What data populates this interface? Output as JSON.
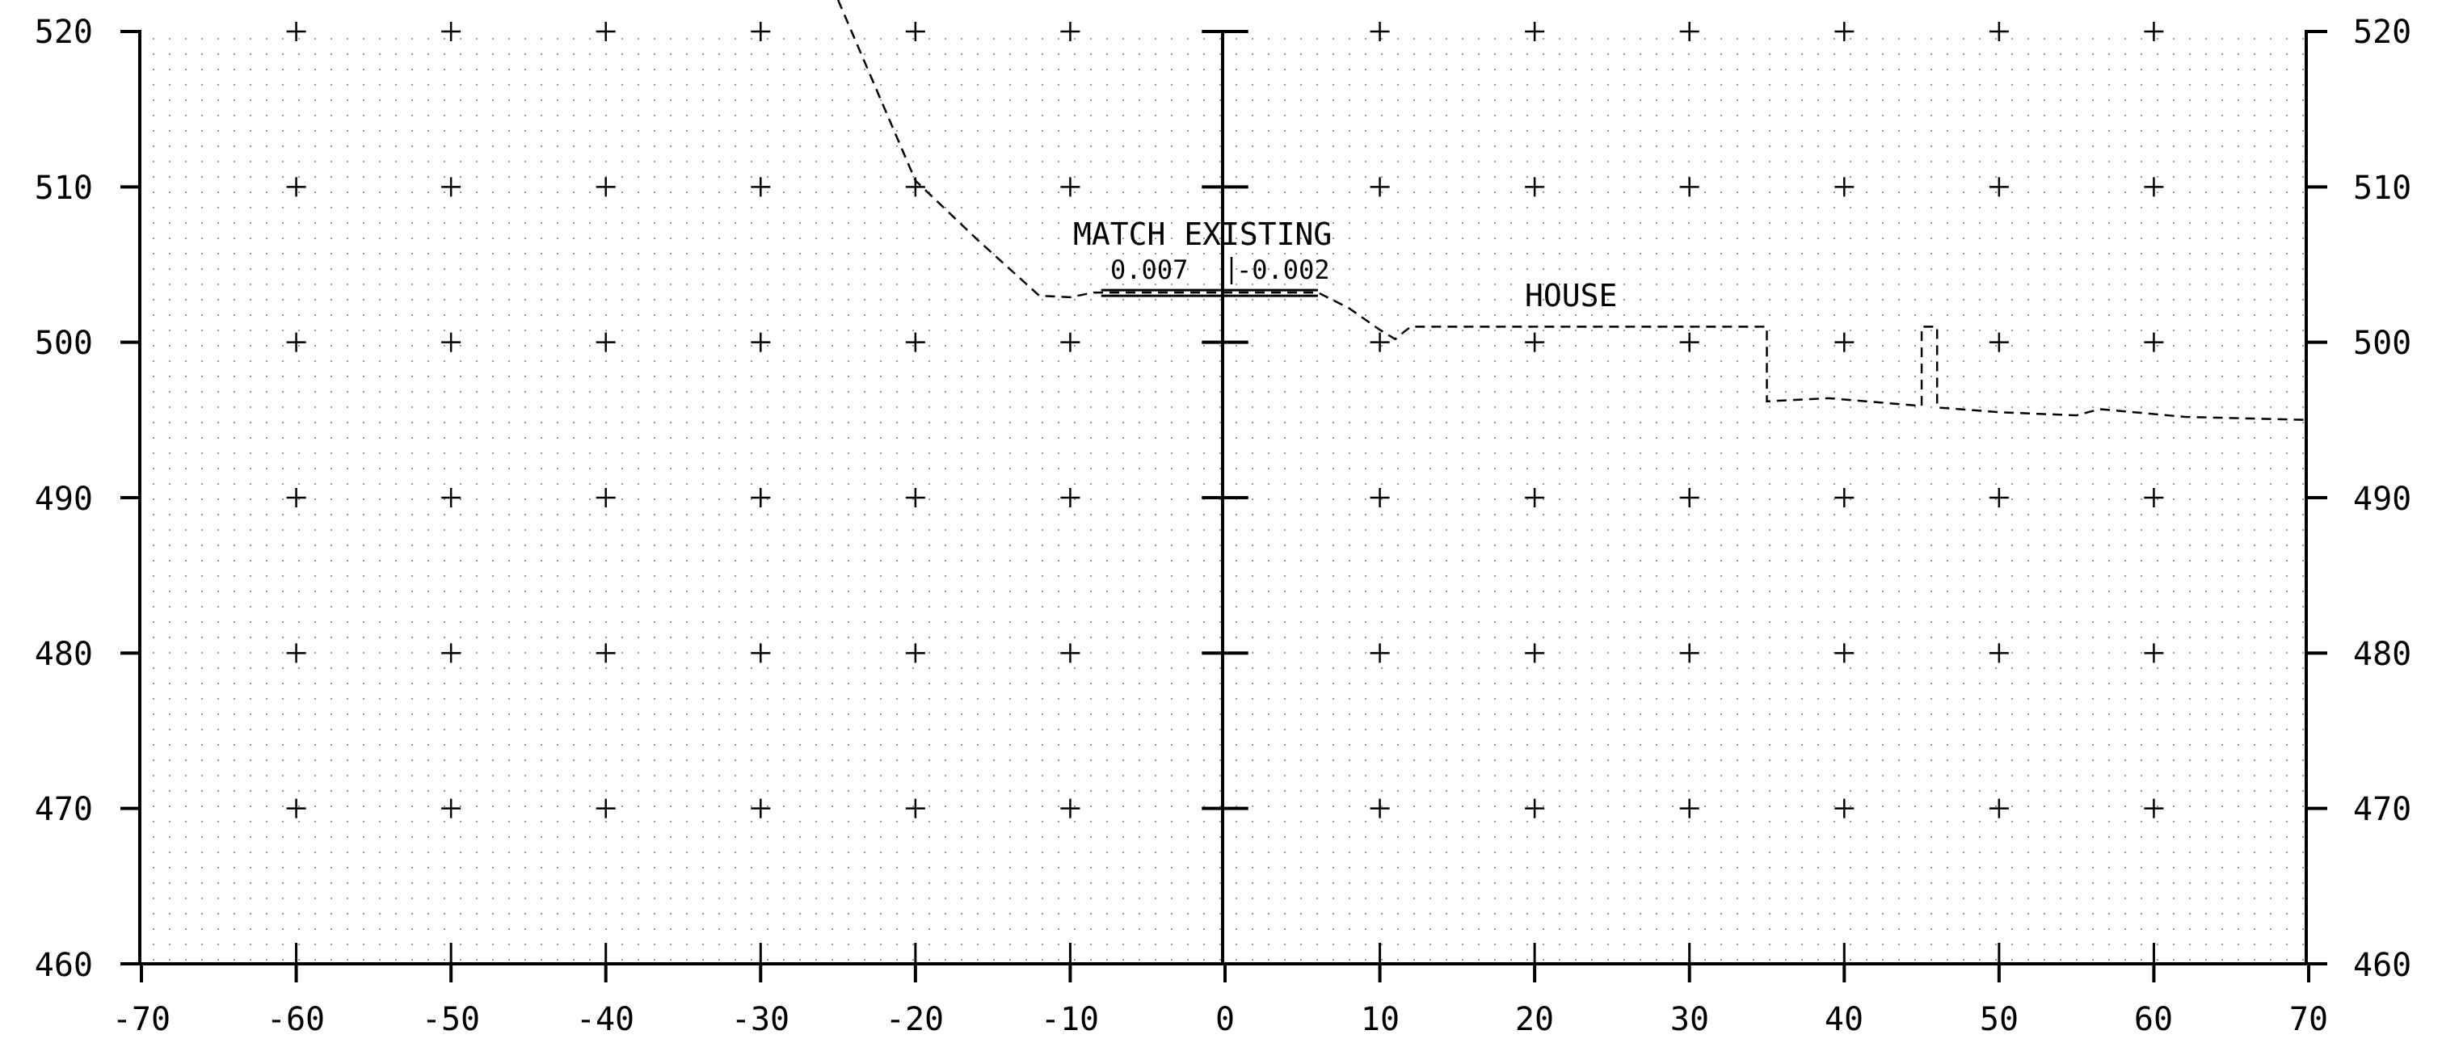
{
  "section": {
    "x_axis": {
      "min": -70,
      "max": 70,
      "step": 10,
      "tick_labels": [
        "-70",
        "-60",
        "-50",
        "-40",
        "-30",
        "-20",
        "-10",
        "0",
        "10",
        "20",
        "30",
        "40",
        "50",
        "60",
        "70"
      ]
    },
    "y_axis": {
      "min": 460,
      "max": 520,
      "step": 10,
      "tick_labels": [
        "460",
        "470",
        "480",
        "490",
        "500",
        "510",
        "520"
      ]
    },
    "grid": "dotted",
    "annotations": {
      "match_existing": "MATCH EXISTING",
      "slope_left": "0.007",
      "slope_right": "-0.002",
      "house": "HOUSE"
    },
    "existing_ground": [
      [
        -25,
        527.5
      ],
      [
        -20,
        510.4
      ],
      [
        -16,
        506.6
      ],
      [
        -12,
        503.0
      ],
      [
        -10,
        502.9
      ],
      [
        -8.5,
        503.2
      ],
      [
        6,
        503.2
      ],
      [
        8,
        502.2
      ],
      [
        10,
        500.8
      ],
      [
        11,
        500.2
      ],
      [
        11.6,
        500.7
      ],
      [
        12,
        501.0
      ],
      [
        35,
        501.0
      ],
      [
        35,
        496.2
      ],
      [
        39,
        496.4
      ],
      [
        45,
        495.9
      ],
      [
        45,
        501.0
      ],
      [
        46,
        501.0
      ],
      [
        46,
        495.8
      ],
      [
        50,
        495.5
      ],
      [
        55,
        495.3
      ],
      [
        56.5,
        495.7
      ],
      [
        62,
        495.2
      ],
      [
        70,
        495.0
      ]
    ],
    "proposed_surface": [
      [
        -8,
        503.2
      ],
      [
        6,
        503.2
      ]
    ]
  }
}
